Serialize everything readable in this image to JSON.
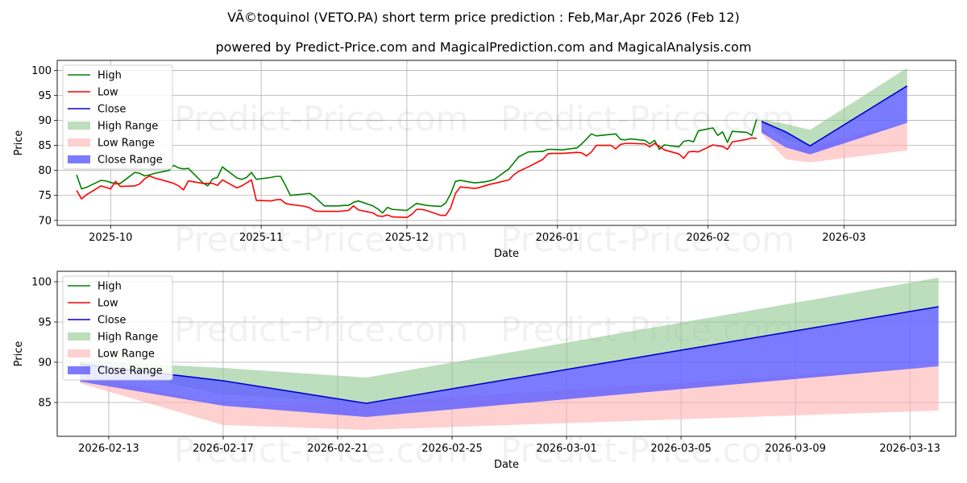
{
  "title": "VÃ©toquinol (VETO.PA) short term price prediction : Feb,Mar,Apr 2026 (Feb 12)",
  "subtitle": "powered by Predict-Price.com and MagicalPrediction.com and MagicalAnalysis.com",
  "watermark": "Predict-Price.com",
  "colors": {
    "high": "#008000",
    "low": "#ff0000",
    "close": "#0000cd",
    "high_range": "#90c890",
    "low_range": "#ffb0b0",
    "close_range": "#6464ff",
    "grid": "#b0b0b0"
  },
  "chart_data": [
    {
      "type": "line",
      "title": "",
      "xlabel": "Date",
      "ylabel": "Price",
      "x_range": [
        "2025-09-20",
        "2026-03-24"
      ],
      "ylim": [
        69,
        102
      ],
      "grid": true,
      "legend_location": "top-left",
      "x_ticks": [
        {
          "date": "2025-10-01",
          "label": "2025-10"
        },
        {
          "date": "2025-11-01",
          "label": "2025-11"
        },
        {
          "date": "2025-12-01",
          "label": "2025-12"
        },
        {
          "date": "2026-01-01",
          "label": "2026-01"
        },
        {
          "date": "2026-02-01",
          "label": "2026-02"
        },
        {
          "date": "2026-03-01",
          "label": "2026-03"
        }
      ],
      "y_ticks": [
        70,
        75,
        80,
        85,
        90,
        95,
        100
      ],
      "legend": [
        "High",
        "Low",
        "Close",
        "High Range",
        "Low Range",
        "Close Range"
      ],
      "series": [
        {
          "name": "High",
          "dates": [
            "2025-09-24",
            "2025-09-25",
            "2025-09-26",
            "2025-09-29",
            "2025-09-30",
            "2025-10-01",
            "2025-10-02",
            "2025-10-03",
            "2025-10-06",
            "2025-10-07",
            "2025-10-08",
            "2025-10-09",
            "2025-10-10",
            "2025-10-13",
            "2025-10-14",
            "2025-10-15",
            "2025-10-16",
            "2025-10-17",
            "2025-10-20",
            "2025-10-21",
            "2025-10-22",
            "2025-10-23",
            "2025-10-24",
            "2025-10-27",
            "2025-10-28",
            "2025-10-29",
            "2025-10-30",
            "2025-10-31",
            "2025-11-03",
            "2025-11-04",
            "2025-11-05",
            "2025-11-06",
            "2025-11-07",
            "2025-11-10",
            "2025-11-11",
            "2025-11-12",
            "2025-11-13",
            "2025-11-14",
            "2025-11-17",
            "2025-11-18",
            "2025-11-19",
            "2025-11-20",
            "2025-11-21",
            "2025-11-24",
            "2025-11-25",
            "2025-11-26",
            "2025-11-27",
            "2025-11-28",
            "2025-12-01",
            "2025-12-02",
            "2025-12-03",
            "2025-12-04",
            "2025-12-05",
            "2025-12-08",
            "2025-12-09",
            "2025-12-10",
            "2025-12-11",
            "2025-12-12",
            "2025-12-15",
            "2025-12-16",
            "2025-12-17",
            "2025-12-18",
            "2025-12-19",
            "2025-12-22",
            "2025-12-23",
            "2025-12-24",
            "2025-12-26",
            "2025-12-29",
            "2025-12-30",
            "2025-12-31",
            "2026-01-02",
            "2026-01-05",
            "2026-01-06",
            "2026-01-07",
            "2026-01-08",
            "2026-01-09",
            "2026-01-12",
            "2026-01-13",
            "2026-01-14",
            "2026-01-15",
            "2026-01-16",
            "2026-01-19",
            "2026-01-20",
            "2026-01-21",
            "2026-01-22",
            "2026-01-23",
            "2026-01-26",
            "2026-01-27",
            "2026-01-28",
            "2026-01-29",
            "2026-01-30",
            "2026-02-02",
            "2026-02-03",
            "2026-02-04",
            "2026-02-05",
            "2026-02-06",
            "2026-02-09",
            "2026-02-10",
            "2026-02-11"
          ],
          "values": [
            79.1,
            76.3,
            76.6,
            78.0,
            77.9,
            77.6,
            77.3,
            77.4,
            79.6,
            79.4,
            78.9,
            79.1,
            79.4,
            80.0,
            81.0,
            80.5,
            80.3,
            80.4,
            77.5,
            76.9,
            78.3,
            78.6,
            80.7,
            78.5,
            78.2,
            78.6,
            79.6,
            78.2,
            78.6,
            78.8,
            78.8,
            77.0,
            75.0,
            75.3,
            75.4,
            74.7,
            73.8,
            72.9,
            72.9,
            73.0,
            73.0,
            73.6,
            73.9,
            72.9,
            72.3,
            71.5,
            72.6,
            72.2,
            72.0,
            72.7,
            73.4,
            73.2,
            73.0,
            72.8,
            73.5,
            75.3,
            77.8,
            78.0,
            77.5,
            77.6,
            77.7,
            77.9,
            78.2,
            80.3,
            81.5,
            82.7,
            83.7,
            83.8,
            84.2,
            84.2,
            84.1,
            84.5,
            85.3,
            86.3,
            87.3,
            86.9,
            87.2,
            87.3,
            86.2,
            86.1,
            86.3,
            86.0,
            85.3,
            86.0,
            84.2,
            85.1,
            84.7,
            85.8,
            86.0,
            85.7,
            87.9,
            88.5,
            87.0,
            87.7,
            85.6,
            87.8,
            87.6,
            87.0,
            90.2
          ]
        },
        {
          "name": "Low",
          "dates": [
            "2025-09-24",
            "2025-09-25",
            "2025-09-26",
            "2025-09-29",
            "2025-09-30",
            "2025-10-01",
            "2025-10-02",
            "2025-10-03",
            "2025-10-06",
            "2025-10-07",
            "2025-10-08",
            "2025-10-09",
            "2025-10-10",
            "2025-10-13",
            "2025-10-14",
            "2025-10-15",
            "2025-10-16",
            "2025-10-17",
            "2025-10-20",
            "2025-10-21",
            "2025-10-22",
            "2025-10-23",
            "2025-10-24",
            "2025-10-27",
            "2025-10-28",
            "2025-10-29",
            "2025-10-30",
            "2025-10-31",
            "2025-11-03",
            "2025-11-04",
            "2025-11-05",
            "2025-11-06",
            "2025-11-07",
            "2025-11-10",
            "2025-11-11",
            "2025-11-12",
            "2025-11-13",
            "2025-11-14",
            "2025-11-17",
            "2025-11-18",
            "2025-11-19",
            "2025-11-20",
            "2025-11-21",
            "2025-11-24",
            "2025-11-25",
            "2025-11-26",
            "2025-11-27",
            "2025-11-28",
            "2025-12-01",
            "2025-12-02",
            "2025-12-03",
            "2025-12-04",
            "2025-12-05",
            "2025-12-08",
            "2025-12-09",
            "2025-12-10",
            "2025-12-11",
            "2025-12-12",
            "2025-12-15",
            "2025-12-16",
            "2025-12-17",
            "2025-12-18",
            "2025-12-19",
            "2025-12-22",
            "2025-12-23",
            "2025-12-24",
            "2025-12-26",
            "2025-12-29",
            "2025-12-30",
            "2025-12-31",
            "2026-01-02",
            "2026-01-05",
            "2026-01-06",
            "2026-01-07",
            "2026-01-08",
            "2026-01-09",
            "2026-01-12",
            "2026-01-13",
            "2026-01-14",
            "2026-01-15",
            "2026-01-16",
            "2026-01-19",
            "2026-01-20",
            "2026-01-21",
            "2026-01-22",
            "2026-01-23",
            "2026-01-26",
            "2026-01-27",
            "2026-01-28",
            "2026-01-29",
            "2026-01-30",
            "2026-02-02",
            "2026-02-03",
            "2026-02-04",
            "2026-02-05",
            "2026-02-06",
            "2026-02-09",
            "2026-02-10",
            "2026-02-11"
          ],
          "values": [
            76.0,
            74.3,
            75.1,
            76.9,
            76.6,
            76.3,
            77.8,
            76.8,
            76.9,
            77.3,
            78.3,
            78.9,
            78.5,
            77.7,
            77.4,
            76.9,
            76.1,
            77.9,
            77.4,
            77.4,
            77.4,
            77.0,
            78.1,
            76.5,
            76.9,
            77.5,
            78.1,
            74.0,
            73.9,
            74.1,
            74.2,
            73.4,
            73.2,
            72.8,
            72.5,
            71.9,
            71.8,
            71.8,
            71.8,
            71.9,
            72.0,
            72.9,
            72.1,
            71.5,
            70.9,
            70.8,
            71.1,
            70.7,
            70.6,
            71.2,
            72.2,
            72.2,
            72.0,
            71.0,
            71.0,
            72.5,
            75.4,
            76.7,
            76.4,
            76.6,
            76.9,
            77.2,
            77.4,
            78.1,
            79.1,
            79.8,
            80.7,
            82.2,
            83.3,
            83.4,
            83.4,
            83.6,
            83.5,
            82.9,
            83.7,
            85.0,
            85.0,
            84.3,
            85.2,
            85.4,
            85.4,
            85.3,
            84.7,
            85.4,
            84.8,
            84.1,
            83.3,
            82.4,
            83.7,
            83.8,
            83.7,
            85.1,
            84.9,
            84.8,
            84.2,
            85.7,
            86.2,
            86.5,
            86.4
          ]
        },
        {
          "name": "Close",
          "dates": [
            "2026-02-12",
            "2026-02-17",
            "2026-02-22",
            "2026-03-14"
          ],
          "values": [
            89.8,
            87.7,
            84.9,
            96.9
          ]
        }
      ],
      "ranges": [
        {
          "name": "High Range",
          "dates": [
            "2026-02-12",
            "2026-02-17",
            "2026-02-22",
            "2026-03-14"
          ],
          "upper": [
            90.2,
            89.3,
            88.1,
            100.5
          ],
          "lower": [
            89.6,
            86.0,
            84.9,
            96.9
          ]
        },
        {
          "name": "Low Range",
          "dates": [
            "2026-02-12",
            "2026-02-17",
            "2026-02-22",
            "2026-03-14"
          ],
          "upper": [
            88.5,
            84.7,
            85.0,
            89.5
          ],
          "lower": [
            87.4,
            82.2,
            81.6,
            84.0
          ]
        },
        {
          "name": "Close Range",
          "dates": [
            "2026-02-12",
            "2026-02-17",
            "2026-02-22",
            "2026-03-14"
          ],
          "upper": [
            89.8,
            87.7,
            84.9,
            96.9
          ],
          "lower": [
            87.6,
            84.6,
            83.2,
            89.5
          ]
        }
      ]
    },
    {
      "type": "line",
      "title": "",
      "xlabel": "Date",
      "ylabel": "Price",
      "x_range": [
        "2026-02-11.2",
        "2026-03-14.6"
      ],
      "ylim": [
        80.8,
        101.3
      ],
      "grid": true,
      "legend_location": "top-left",
      "x_ticks": [
        {
          "date": "2026-02-13",
          "label": "2026-02-13"
        },
        {
          "date": "2026-02-17",
          "label": "2026-02-17"
        },
        {
          "date": "2026-02-21",
          "label": "2026-02-21"
        },
        {
          "date": "2026-02-25",
          "label": "2026-02-25"
        },
        {
          "date": "2026-03-01",
          "label": "2026-03-01"
        },
        {
          "date": "2026-03-05",
          "label": "2026-03-05"
        },
        {
          "date": "2026-03-09",
          "label": "2026-03-09"
        },
        {
          "date": "2026-03-13",
          "label": "2026-03-13"
        }
      ],
      "y_ticks": [
        85,
        90,
        95,
        100
      ],
      "legend": [
        "High",
        "Low",
        "Close",
        "High Range",
        "Low Range",
        "Close Range"
      ],
      "series": [
        {
          "name": "Close",
          "dates": [
            "2026-02-12",
            "2026-02-17",
            "2026-02-22",
            "2026-03-14"
          ],
          "values": [
            89.8,
            87.7,
            84.9,
            96.9
          ]
        }
      ],
      "ranges": [
        {
          "name": "High Range",
          "dates": [
            "2026-02-12",
            "2026-02-17",
            "2026-02-22",
            "2026-03-14"
          ],
          "upper": [
            90.2,
            89.3,
            88.1,
            100.5
          ],
          "lower": [
            89.6,
            86.0,
            84.9,
            96.9
          ]
        },
        {
          "name": "Low Range",
          "dates": [
            "2026-02-12",
            "2026-02-17",
            "2026-02-22",
            "2026-03-14"
          ],
          "upper": [
            88.5,
            84.7,
            85.0,
            89.5
          ],
          "lower": [
            87.4,
            82.2,
            81.6,
            84.0
          ]
        },
        {
          "name": "Close Range",
          "dates": [
            "2026-02-12",
            "2026-02-17",
            "2026-02-22",
            "2026-03-14"
          ],
          "upper": [
            89.8,
            87.7,
            84.9,
            96.9
          ],
          "lower": [
            87.6,
            84.6,
            83.2,
            89.5
          ]
        }
      ]
    }
  ]
}
